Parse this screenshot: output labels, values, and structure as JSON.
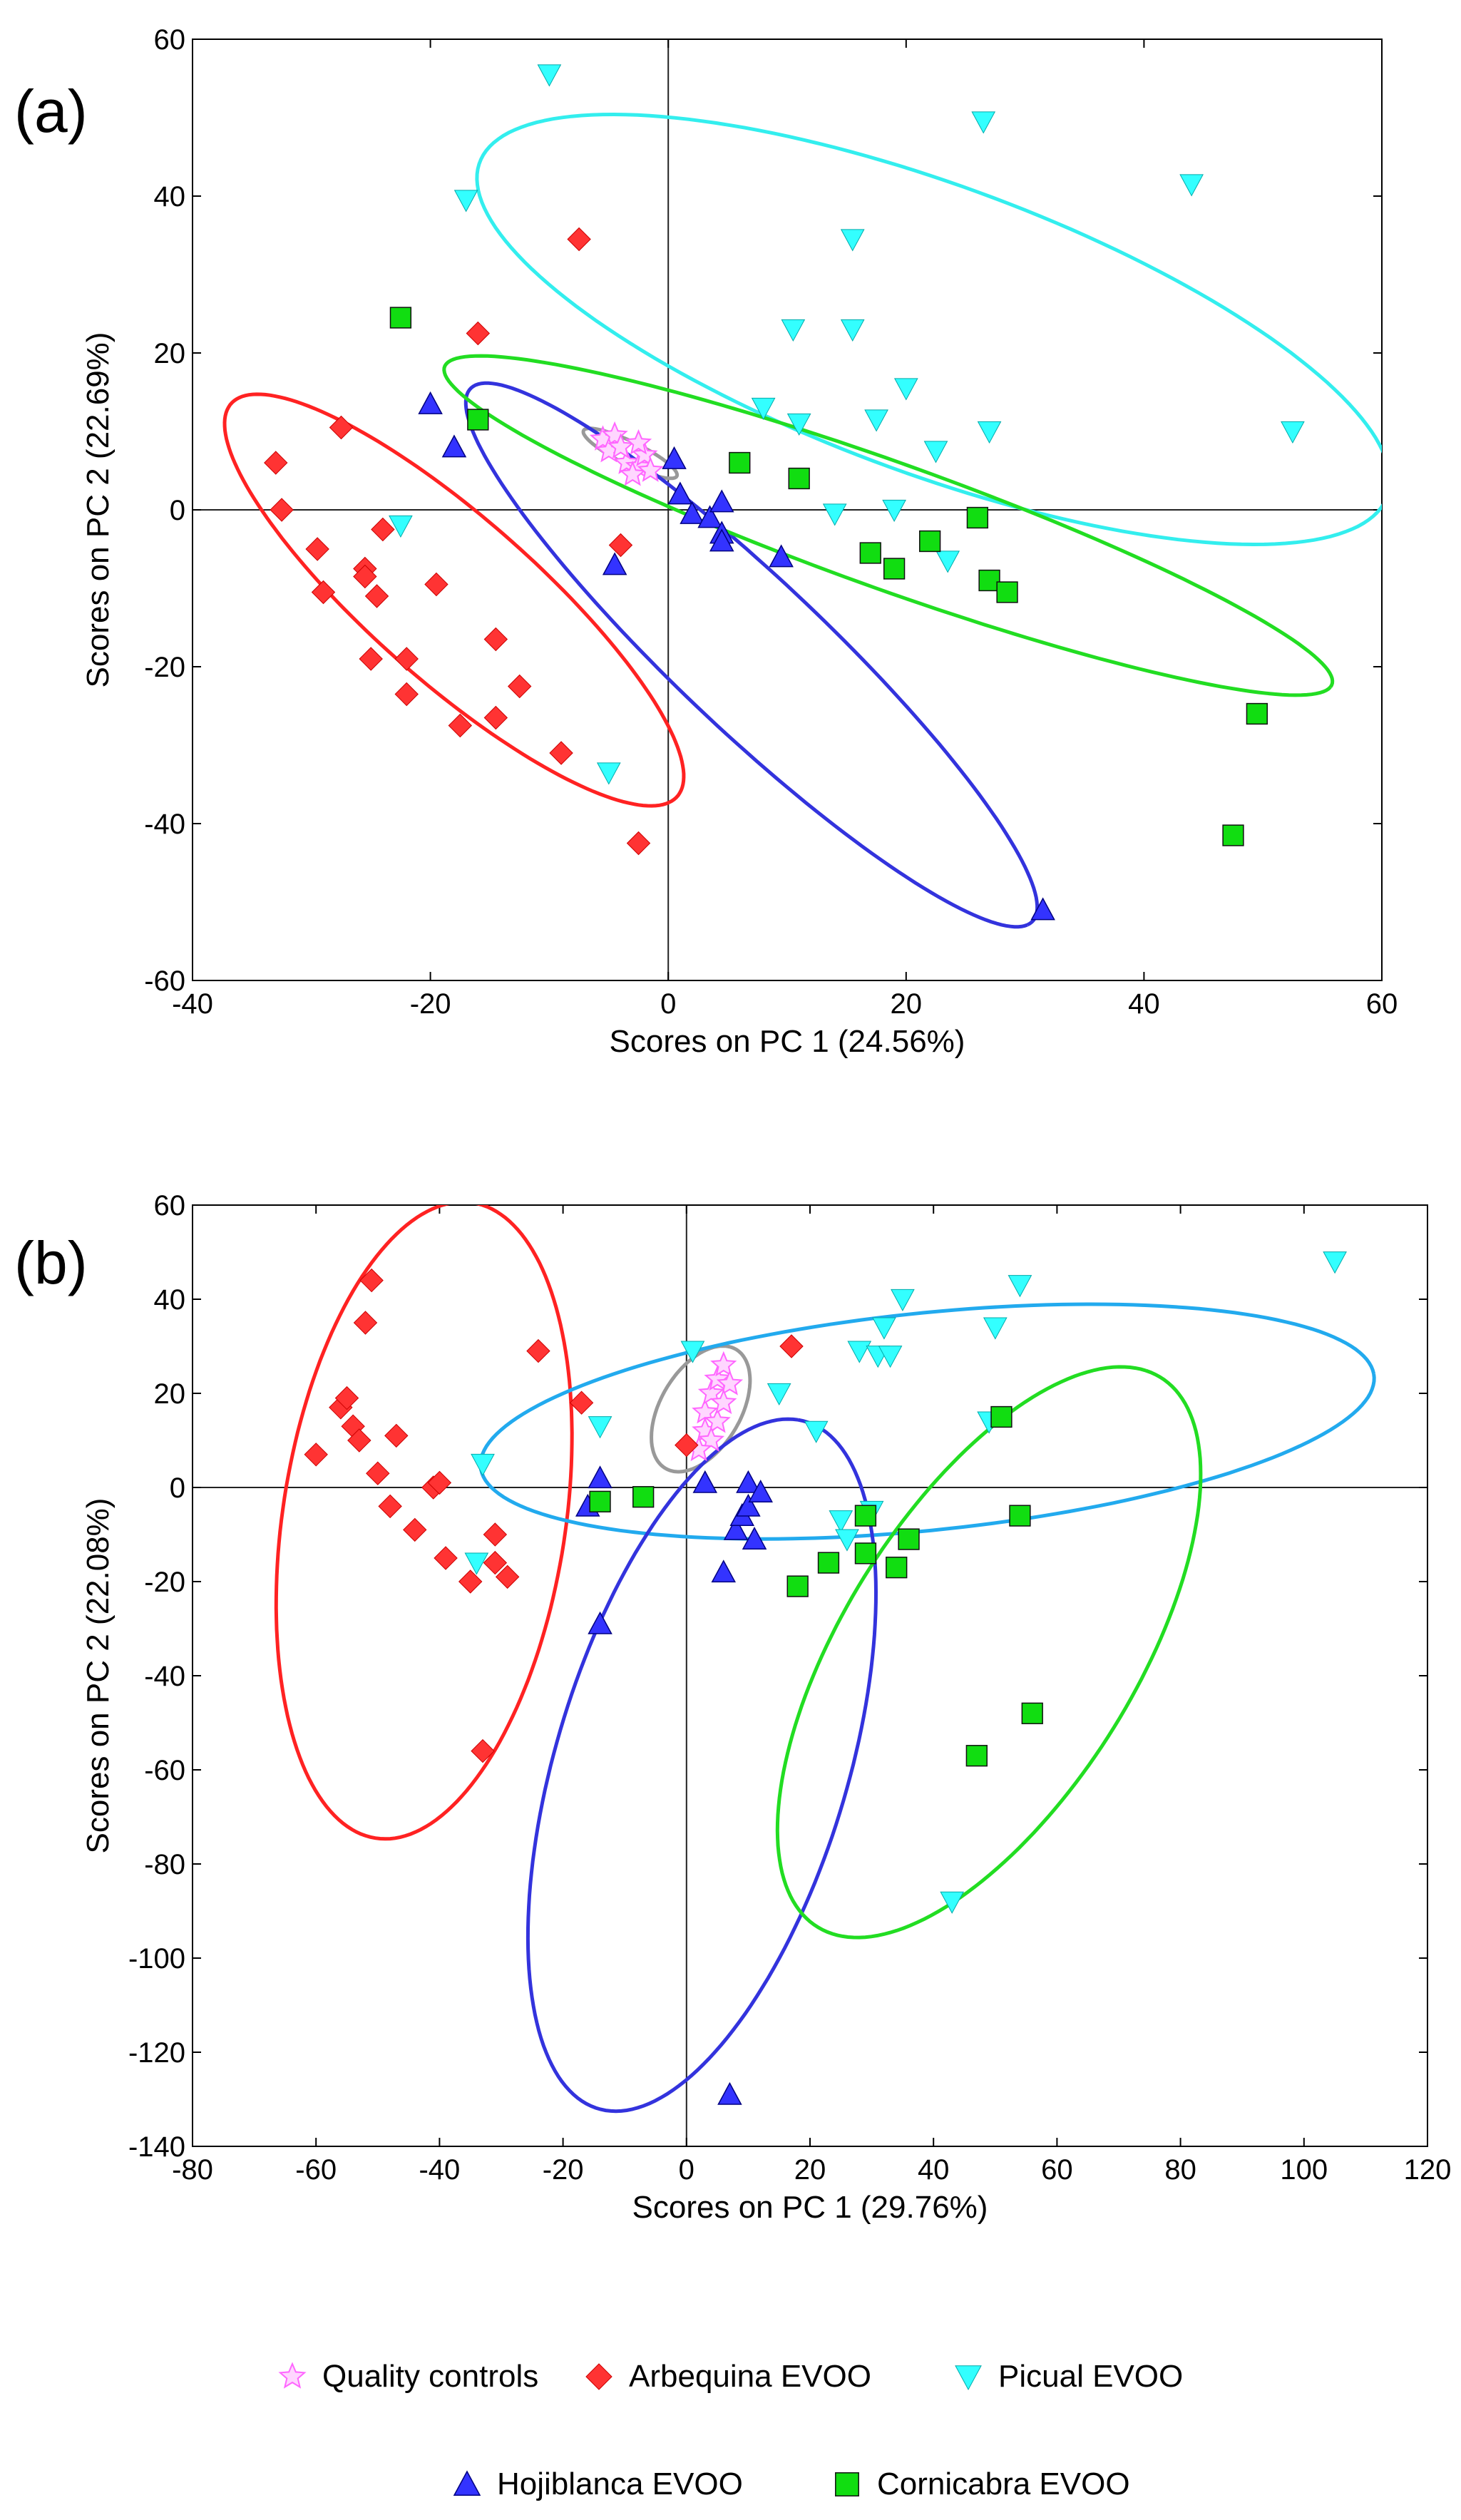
{
  "figure": {
    "legend": [
      {
        "key": "qc",
        "label": "Quality controls"
      },
      {
        "key": "arb",
        "label": "Arbequina EVOO"
      },
      {
        "key": "pic",
        "label": "Picual EVOO"
      },
      {
        "key": "hoj",
        "label": "Hojiblanca EVOO"
      },
      {
        "key": "cor",
        "label": "Cornicabra EVOO"
      }
    ],
    "colors": {
      "qc": "#ff66ff",
      "arb": "#ff3333",
      "pic": "#33ffff",
      "hoj": "#3333ff",
      "cor": "#11dd11",
      "ellipse_qc": "#999999",
      "ellipse_arb": "#ff2222",
      "ellipse_pic_a": "#33eeee",
      "ellipse_pic_b": "#22aaee",
      "ellipse_hoj": "#3333dd",
      "ellipse_cor": "#22dd22"
    }
  },
  "chart_data": [
    {
      "type": "scatter",
      "panel_label": "(a)",
      "xlabel": "Scores on PC 1 (24.56%)",
      "ylabel": "Scores on PC 2 (22.69%)",
      "xlim": [
        -40,
        60
      ],
      "ylim": [
        -60,
        60
      ],
      "xticks": [
        -40,
        -20,
        0,
        20,
        40,
        60
      ],
      "yticks": [
        -60,
        -40,
        -20,
        0,
        20,
        40,
        60
      ],
      "grid": false,
      "reference_lines": {
        "x": 0,
        "y": 0
      },
      "series": [
        {
          "name": "Quality controls",
          "key": "qc",
          "marker": "star",
          "points": [
            [
              -5.5,
              9
            ],
            [
              -4.5,
              9.5
            ],
            [
              -3.5,
              6
            ],
            [
              -2.5,
              5.5
            ],
            [
              -2,
              7
            ],
            [
              -3,
              4.5
            ],
            [
              -5,
              7.5
            ],
            [
              -1.5,
              5
            ],
            [
              -4,
              8
            ],
            [
              -2.5,
              8.5
            ]
          ]
        },
        {
          "name": "Arbequina EVOO",
          "key": "arb",
          "marker": "diamond",
          "points": [
            [
              -33,
              6
            ],
            [
              -32.5,
              0
            ],
            [
              -27.5,
              10.5
            ],
            [
              -29.5,
              -5
            ],
            [
              -29,
              -10.5
            ],
            [
              -25.5,
              -7.5
            ],
            [
              -25.5,
              -8.5
            ],
            [
              -24.5,
              -11
            ],
            [
              -24,
              -2.5
            ],
            [
              -25,
              -19
            ],
            [
              -22,
              -19
            ],
            [
              -22,
              -23.5
            ],
            [
              -19.5,
              -9.5
            ],
            [
              -17.5,
              -27.5
            ],
            [
              -16,
              22.5
            ],
            [
              -14.5,
              -16.5
            ],
            [
              -14.5,
              -26.5
            ],
            [
              -12.5,
              -22.5
            ],
            [
              -9,
              -31
            ],
            [
              -7.5,
              34.5
            ],
            [
              -4,
              -4.5
            ],
            [
              -2.5,
              -42.5
            ]
          ]
        },
        {
          "name": "Picual EVOO",
          "key": "pic",
          "marker": "triangle-down",
          "points": [
            [
              -10,
              55.5
            ],
            [
              -17,
              39.5
            ],
            [
              -22.5,
              -2
            ],
            [
              -5,
              -33.5
            ],
            [
              8,
              13
            ],
            [
              11,
              11
            ],
            [
              10.5,
              23
            ],
            [
              14,
              -0.5
            ],
            [
              15.5,
              34.5
            ],
            [
              15.5,
              23
            ],
            [
              17.5,
              11.5
            ],
            [
              19,
              0
            ],
            [
              20,
              15.5
            ],
            [
              22.5,
              7.5
            ],
            [
              23.5,
              -6.5
            ],
            [
              26.5,
              49.5
            ],
            [
              27,
              10
            ],
            [
              44,
              41.5
            ],
            [
              52.5,
              10
            ]
          ]
        },
        {
          "name": "Hojiblanca EVOO",
          "key": "hoj",
          "marker": "triangle-up",
          "points": [
            [
              -20,
              13.5
            ],
            [
              -18,
              8
            ],
            [
              -4.5,
              -7
            ],
            [
              0.5,
              6.5
            ],
            [
              1,
              2
            ],
            [
              2,
              -0.5
            ],
            [
              3.5,
              -1
            ],
            [
              4.5,
              1
            ],
            [
              4.5,
              -3
            ],
            [
              4.5,
              -4
            ],
            [
              9.5,
              -6
            ],
            [
              31.5,
              -51
            ]
          ]
        },
        {
          "name": "Cornicabra EVOO",
          "key": "cor",
          "marker": "square",
          "points": [
            [
              -22.5,
              24.5
            ],
            [
              -16,
              11.5
            ],
            [
              6,
              6
            ],
            [
              11,
              4
            ],
            [
              17,
              -5.5
            ],
            [
              19,
              -7.5
            ],
            [
              22,
              -4
            ],
            [
              26,
              -1
            ],
            [
              27,
              -9
            ],
            [
              28.5,
              -10.5
            ],
            [
              49.5,
              -26
            ],
            [
              47.5,
              -41.5
            ]
          ]
        }
      ],
      "confidence_ellipses": [
        {
          "group": "Quality controls",
          "color_key": "ellipse_qc",
          "center": [
            -3.2,
            7.2
          ],
          "semi_axes": [
            4.9,
            1.3
          ],
          "angle_deg": -38
        },
        {
          "group": "Arbequina EVOO",
          "color_key": "ellipse_arb",
          "center": [
            -18,
            -11.5
          ],
          "semi_axes": [
            31.5,
            8.3
          ],
          "angle_deg": -55
        },
        {
          "group": "Picual EVOO",
          "color_key": "ellipse_pic_a",
          "center": [
            22.3,
            23
          ],
          "semi_axes": [
            44,
            17
          ],
          "angle_deg": -32
        },
        {
          "group": "Hojiblanca EVOO",
          "color_key": "ellipse_hoj",
          "center": [
            7,
            -18.5
          ],
          "semi_axes": [
            41.5,
            7.5
          ],
          "angle_deg": -56
        },
        {
          "group": "Cornicabra EVOO",
          "color_key": "ellipse_cor",
          "center": [
            18.5,
            -2
          ],
          "semi_axes": [
            42.5,
            7.5
          ],
          "angle_deg": -29
        }
      ]
    },
    {
      "type": "scatter",
      "panel_label": "(b)",
      "xlabel": "Scores on PC 1 (29.76%)",
      "ylabel": "Scores on PC 2 (22.08%)",
      "xlim": [
        -80,
        120
      ],
      "ylim": [
        -140,
        60
      ],
      "xticks": [
        -80,
        -60,
        -40,
        -20,
        0,
        20,
        40,
        60,
        80,
        100,
        120
      ],
      "yticks": [
        -140,
        -120,
        -100,
        -80,
        -60,
        -40,
        -20,
        0,
        20,
        40,
        60
      ],
      "grid": false,
      "reference_lines": {
        "x": 0,
        "y": 0
      },
      "series": [
        {
          "name": "Quality controls",
          "key": "qc",
          "marker": "star",
          "points": [
            [
              3,
              16
            ],
            [
              4,
              20
            ],
            [
              5,
              23
            ],
            [
              6,
              26
            ],
            [
              7,
              22
            ],
            [
              3,
              12
            ],
            [
              5,
              14
            ],
            [
              4,
              10
            ],
            [
              2,
              8
            ],
            [
              6,
              18
            ]
          ]
        },
        {
          "name": "Arbequina EVOO",
          "key": "arb",
          "marker": "diamond",
          "points": [
            [
              -60,
              7
            ],
            [
              -56,
              17
            ],
            [
              -55,
              19
            ],
            [
              -54,
              13
            ],
            [
              -53,
              10
            ],
            [
              -52,
              35
            ],
            [
              -51,
              44
            ],
            [
              -50,
              3
            ],
            [
              -48,
              -4
            ],
            [
              -47,
              11
            ],
            [
              -44,
              -9
            ],
            [
              -41,
              0
            ],
            [
              -40,
              1
            ],
            [
              -39,
              -15
            ],
            [
              -35,
              -20
            ],
            [
              -33,
              -56
            ],
            [
              -31,
              -10
            ],
            [
              -31,
              -16
            ],
            [
              -29,
              -19
            ],
            [
              -24,
              29
            ],
            [
              -17,
              18
            ],
            [
              0,
              9
            ],
            [
              17,
              30
            ]
          ]
        },
        {
          "name": "Picual EVOO",
          "key": "pic",
          "marker": "triangle-down",
          "points": [
            [
              -34,
              -16
            ],
            [
              -33,
              5
            ],
            [
              -14,
              13
            ],
            [
              1,
              29
            ],
            [
              15,
              20
            ],
            [
              21,
              12
            ],
            [
              25,
              -7
            ],
            [
              26,
              -11
            ],
            [
              28,
              29
            ],
            [
              30,
              -5
            ],
            [
              31,
              28
            ],
            [
              32,
              34
            ],
            [
              33,
              28
            ],
            [
              35,
              40
            ],
            [
              49,
              14
            ],
            [
              50,
              34
            ],
            [
              54,
              43
            ],
            [
              43,
              -88
            ],
            [
              105,
              48
            ]
          ]
        },
        {
          "name": "Hojiblanca EVOO",
          "key": "hoj",
          "marker": "triangle-up",
          "points": [
            [
              -16,
              -4
            ],
            [
              -14,
              2
            ],
            [
              -14,
              -29
            ],
            [
              3,
              1
            ],
            [
              6,
              -18
            ],
            [
              8,
              -9
            ],
            [
              9,
              -6
            ],
            [
              10,
              1
            ],
            [
              10,
              -4
            ],
            [
              11,
              -11
            ],
            [
              12,
              -1
            ],
            [
              7,
              -129
            ]
          ]
        },
        {
          "name": "Cornicabra EVOO",
          "key": "cor",
          "marker": "square",
          "points": [
            [
              -14,
              -3
            ],
            [
              -7,
              -2
            ],
            [
              18,
              -21
            ],
            [
              23,
              -16
            ],
            [
              29,
              -6
            ],
            [
              29,
              -14
            ],
            [
              34,
              -17
            ],
            [
              36,
              -11
            ],
            [
              47,
              -57
            ],
            [
              51,
              15
            ],
            [
              54,
              -6
            ],
            [
              56,
              -48
            ]
          ]
        }
      ],
      "confidence_ellipses": [
        {
          "group": "Quality controls",
          "color_key": "ellipse_qc",
          "center": [
            2.3,
            16.7
          ],
          "semi_axes": [
            14,
            6.8
          ],
          "angle_deg": 70
        },
        {
          "group": "Arbequina EVOO",
          "color_key": "ellipse_arb",
          "center": [
            -42.5,
            -7
          ],
          "semi_axes": [
            68,
            23
          ],
          "angle_deg": 84
        },
        {
          "group": "Picual EVOO",
          "color_key": "ellipse_pic_b",
          "center": [
            39,
            14
          ],
          "semi_axes": [
            73,
            23
          ],
          "angle_deg": 8
        },
        {
          "group": "Hojiblanca EVOO",
          "color_key": "ellipse_hoj",
          "center": [
            2.5,
            -59
          ],
          "semi_axes": [
            75,
            24
          ],
          "angle_deg": 78
        },
        {
          "group": "Cornicabra EVOO",
          "color_key": "ellipse_cor",
          "center": [
            49,
            -35
          ],
          "semi_axes": [
            65,
            25
          ],
          "angle_deg": 67
        }
      ]
    }
  ]
}
